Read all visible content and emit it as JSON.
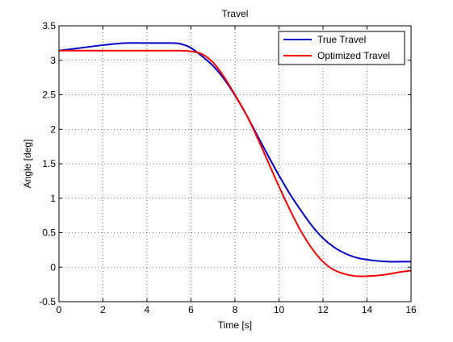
{
  "chart_data": {
    "type": "line",
    "title": "Travel",
    "xlabel": "Time [s]",
    "ylabel": "Angle [deg]",
    "xlim": [
      0,
      16
    ],
    "ylim": [
      -0.5,
      3.5
    ],
    "xticks": [
      0,
      2,
      4,
      6,
      8,
      10,
      12,
      14,
      16
    ],
    "yticks": [
      -0.5,
      0,
      0.5,
      1,
      1.5,
      2,
      2.5,
      3,
      3.5
    ],
    "xtick_labels": [
      "0",
      "2",
      "4",
      "6",
      "8",
      "10",
      "12",
      "14",
      "16"
    ],
    "ytick_labels": [
      "-0.5",
      "0",
      "0.5",
      "1",
      "1.5",
      "2",
      "2.5",
      "3",
      "3.5"
    ],
    "grid": true,
    "legend_position": "top-right",
    "series": [
      {
        "name": "True Travel",
        "color": "#0000cc",
        "x": [
          0,
          1,
          2,
          3,
          4,
          5,
          5.5,
          6,
          6.5,
          7,
          7.5,
          8,
          8.5,
          9,
          9.5,
          10,
          10.5,
          11,
          11.5,
          12,
          12.5,
          13,
          13.5,
          14,
          14.5,
          15,
          15.5,
          16
        ],
        "y": [
          3.14,
          3.18,
          3.22,
          3.25,
          3.25,
          3.25,
          3.24,
          3.18,
          3.06,
          2.92,
          2.73,
          2.49,
          2.22,
          1.92,
          1.62,
          1.33,
          1.06,
          0.82,
          0.6,
          0.42,
          0.29,
          0.2,
          0.14,
          0.11,
          0.09,
          0.08,
          0.08,
          0.08
        ]
      },
      {
        "name": "Optimized Travel",
        "color": "#ff0000",
        "x": [
          0,
          1,
          2,
          3,
          4,
          5,
          5.5,
          6,
          6.5,
          7,
          7.5,
          8,
          8.5,
          9,
          9.5,
          10,
          10.5,
          11,
          11.5,
          12,
          12.5,
          13,
          13.5,
          14,
          14.5,
          15,
          15.5,
          16
        ],
        "y": [
          3.14,
          3.14,
          3.14,
          3.14,
          3.14,
          3.14,
          3.14,
          3.13,
          3.09,
          2.97,
          2.76,
          2.5,
          2.22,
          1.89,
          1.53,
          1.17,
          0.83,
          0.52,
          0.27,
          0.08,
          -0.04,
          -0.1,
          -0.13,
          -0.13,
          -0.12,
          -0.1,
          -0.07,
          -0.05
        ]
      }
    ]
  }
}
